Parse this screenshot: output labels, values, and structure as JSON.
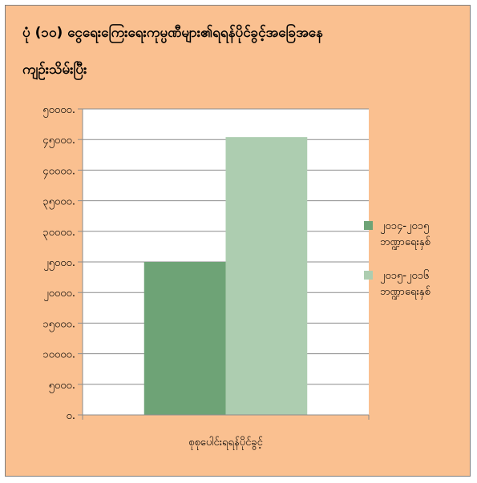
{
  "chart_data": {
    "type": "bar",
    "title": "ပုံ (၁၀)    ငွေရေးကြေးရေးကုမ္ပဏီများ၏ရရန်ပိုင်ခွင့်အခြေအနေ",
    "title_cont": "ကျဉ်းသိမ်းပြီး",
    "categories": [
      "စုစုပေါင်းရရန်ပိုင်ခွင့်"
    ],
    "series": [
      {
        "name": "၂၀၁၄-၂၀၁၅ ဘဏ္ဍာရေးနှစ်",
        "name_line1": "၂၀၁၄-၂၀၁၅",
        "name_line2": "ဘဏ္ဍာရေးနှစ်",
        "values": [
          25000
        ],
        "color": "#6ea376"
      },
      {
        "name": "၂၀၁၅-၂၀၁၆ ဘဏ္ဍာရေးနှစ်",
        "name_line1": "၂၀၁၅-၂၀၁၆",
        "name_line2": "ဘဏ္ဍာရေးနှစ်",
        "values": [
          45400
        ],
        "color": "#adcdb0"
      }
    ],
    "ylim": [
      0,
      50000
    ],
    "yticks": [
      0,
      5000,
      10000,
      15000,
      20000,
      25000,
      30000,
      35000,
      40000,
      45000,
      50000
    ],
    "ytick_labels": [
      "၀.",
      "၅၀၀၀.",
      "၁၀၀၀၀.",
      "၁၅၀၀၀.",
      "၂၀၀၀၀.",
      "၂၅၀၀၀.",
      "၃၀၀၀၀.",
      "၃၅၀၀၀.",
      "၄၀၀၀၀.",
      "၄၅၀၀၀.",
      "၅၀၀၀၀."
    ],
    "grid": true,
    "legend_position": "right",
    "plot_background": "#ffffff",
    "gridline_color": "#8c8c8c",
    "frame_background": "#fac090"
  }
}
